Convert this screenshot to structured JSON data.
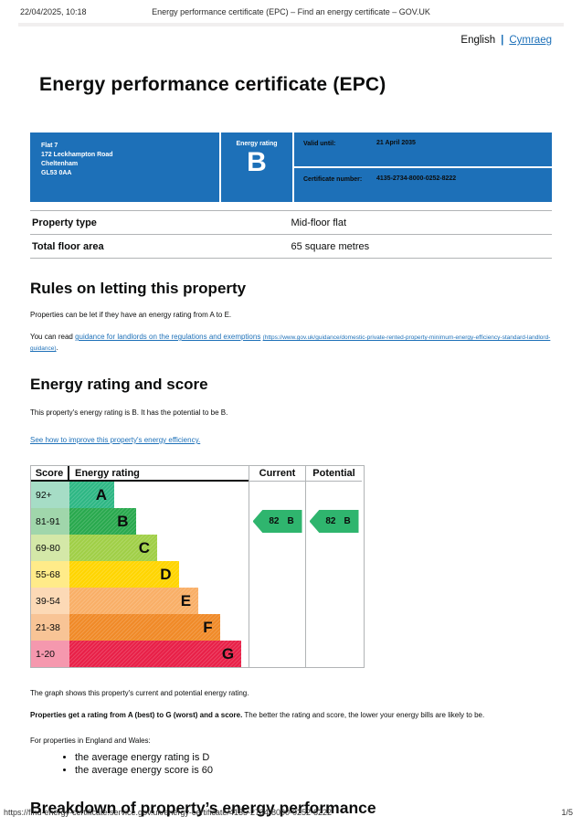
{
  "print_header": {
    "datetime": "22/04/2025, 10:18",
    "title": "Energy performance certificate (EPC) – Find an energy certificate – GOV.UK"
  },
  "language_bar": {
    "current": "English",
    "separator": "|",
    "link": "Cymraeg"
  },
  "page": {
    "title": "Energy performance certificate (EPC)"
  },
  "summary_box": {
    "background_color": "#1d70b8",
    "address_lines": [
      "Flat 7",
      "172 Leckhampton Road",
      "Cheltenham",
      "GL53 0AA"
    ],
    "energy_rating_label": "Energy rating",
    "energy_rating": "B",
    "valid_until_label": "Valid until:",
    "valid_until": "21 April 2035",
    "certificate_number_label": "Certificate number:",
    "certificate_number": "4135-2734-8000-0252-8222"
  },
  "property_summary": {
    "rows": [
      {
        "key": "Property type",
        "value": "Mid-floor flat"
      },
      {
        "key": "Total floor area",
        "value": "65 square metres"
      }
    ]
  },
  "letting_rules": {
    "heading": "Rules on letting this property",
    "paragraph": "Properties can be let if they have an energy rating from A to E.",
    "link_prefix": "You can read ",
    "link_text": "guidance for landlords on the regulations and exemptions",
    "link_url_text": "(https://www.gov.uk/guidance/domestic-private-rented-property-minimum-energy-efficiency-standard-landlord-guidance)",
    "link_suffix": "."
  },
  "rating_section": {
    "heading": "Energy rating and score",
    "paragraph": "This property's energy rating is B. It has the potential to be B.",
    "improve_link": "See how to improve this property's energy efficiency."
  },
  "chart_data": {
    "type": "epc-rating-bands",
    "headers": {
      "score": "Score",
      "rating": "Energy rating",
      "current": "Current",
      "potential": "Potential"
    },
    "bands": [
      {
        "score": "92+",
        "letter": "A",
        "color": "#2eb784",
        "score_bg": "#a6ddc6",
        "width_pct": 25
      },
      {
        "score": "81-91",
        "letter": "B",
        "color": "#29a94e",
        "score_bg": "#a0d6ab",
        "width_pct": 37
      },
      {
        "score": "69-80",
        "letter": "C",
        "color": "#a0cf47",
        "score_bg": "#d4e8a8",
        "width_pct": 49
      },
      {
        "score": "55-68",
        "letter": "D",
        "color": "#ffd500",
        "score_bg": "#ffeb89",
        "width_pct": 61
      },
      {
        "score": "39-54",
        "letter": "E",
        "color": "#f9af67",
        "score_bg": "#fcd9b6",
        "width_pct": 72
      },
      {
        "score": "21-38",
        "letter": "F",
        "color": "#f08a28",
        "score_bg": "#f8c496",
        "width_pct": 84
      },
      {
        "score": "1-20",
        "letter": "G",
        "color": "#e82048",
        "score_bg": "#f598ae",
        "width_pct": 96
      }
    ],
    "current": {
      "value": 82,
      "band": "B",
      "band_index": 1,
      "arrow_color": "#2fb56e"
    },
    "potential": {
      "value": 82,
      "band": "B",
      "band_index": 1,
      "arrow_color": "#2fb56e"
    }
  },
  "chart_notes": {
    "p1": "The graph shows this property's current and potential energy rating.",
    "p2_bold": "Properties get a rating from A (best) to G (worst) and a score.",
    "p2_rest": " The better the rating and score, the lower your energy bills are likely to be.",
    "p3": "For properties in England and Wales:",
    "bullets": [
      "the average energy rating is D",
      "the average energy score is 60"
    ]
  },
  "breakdown": {
    "heading": "Breakdown of property’s energy performance"
  },
  "print_footer": {
    "url": "https://find-energy-certificate.service.gov.uk/energy-certificate/4135-2734-8000-0252-8222",
    "page_indicator": "1/5"
  }
}
